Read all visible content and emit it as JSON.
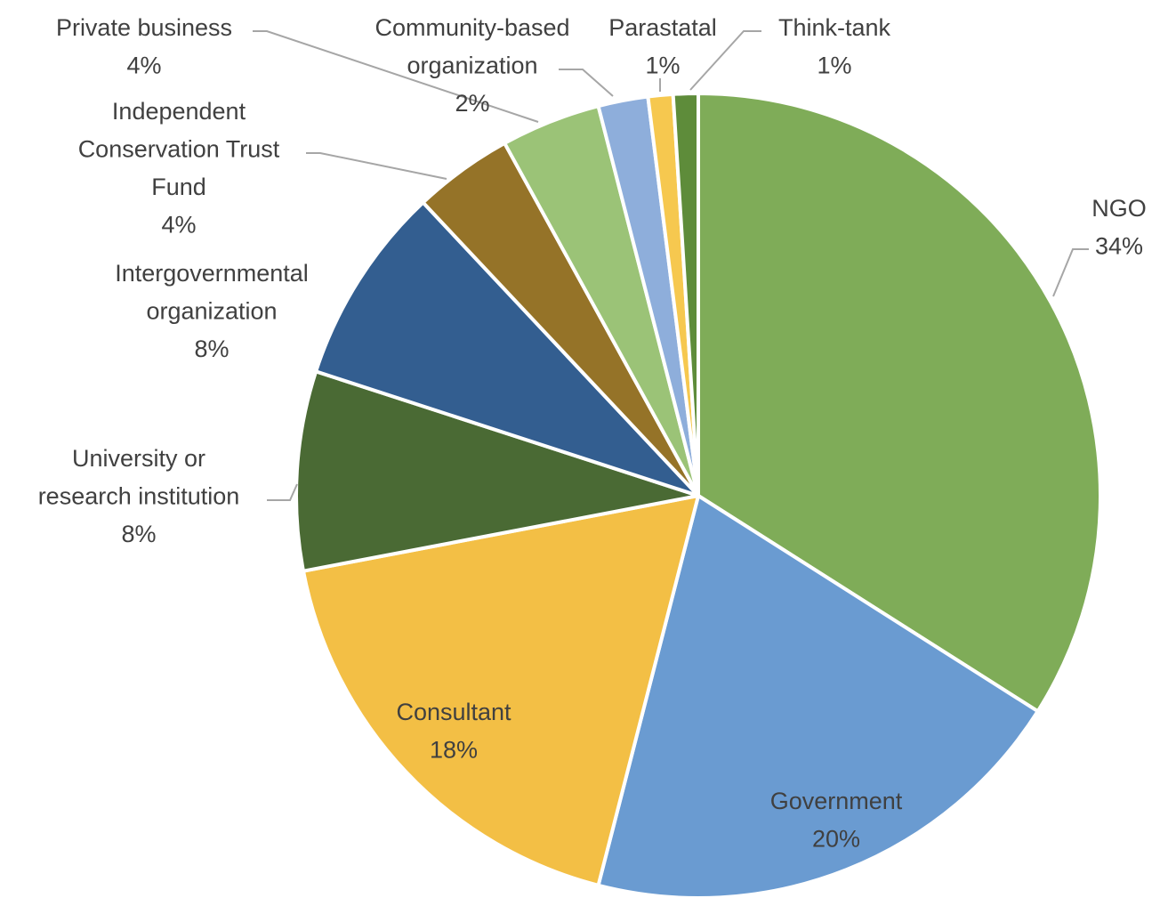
{
  "chart_data": {
    "type": "pie",
    "title": "",
    "slices": [
      {
        "label": "NGO",
        "value": 34,
        "value_label": "34%",
        "color": "#7fac58"
      },
      {
        "label": "Government",
        "value": 20,
        "value_label": "20%",
        "color": "#6a9bd1"
      },
      {
        "label": "Consultant",
        "value": 18,
        "value_label": "18%",
        "color": "#f3bf45"
      },
      {
        "label": "University or research institution",
        "value": 8,
        "value_label": "8%",
        "color": "#4a6a34"
      },
      {
        "label": "Intergovernmental organization",
        "value": 8,
        "value_label": "8%",
        "color": "#335e90"
      },
      {
        "label": "Independent Conservation Trust Fund",
        "value": 4,
        "value_label": "4%",
        "color": "#957328"
      },
      {
        "label": "Private business",
        "value": 4,
        "value_label": "4%",
        "color": "#9bc377"
      },
      {
        "label": "Community-based organization",
        "value": 2,
        "value_label": "2%",
        "color": "#8eaedb"
      },
      {
        "label": "Parastatal",
        "value": 1,
        "value_label": "1%",
        "color": "#f6c84f"
      },
      {
        "label": "Think-tank",
        "value": 1,
        "value_label": "1%",
        "color": "#5e8c3a"
      }
    ],
    "start_angle_deg": 0,
    "direction": "clockwise",
    "legend": "none"
  }
}
